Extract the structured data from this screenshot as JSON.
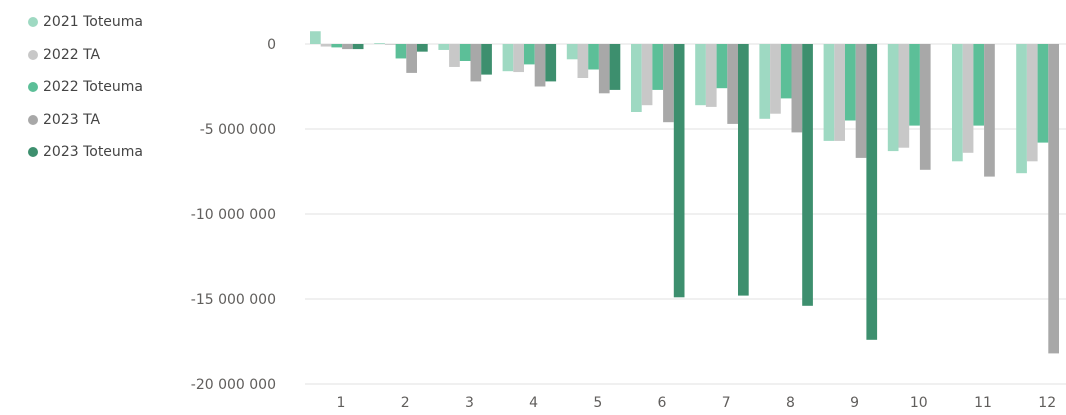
{
  "chart_data": {
    "type": "bar",
    "categories": [
      "1",
      "2",
      "3",
      "4",
      "5",
      "6",
      "7",
      "8",
      "9",
      "10",
      "11",
      "12"
    ],
    "series": [
      {
        "name": "2021 Toteuma",
        "color": "#9ed9c2",
        "values": [
          750000,
          50000,
          -350000,
          -1600000,
          -900000,
          -4000000,
          -3600000,
          -4400000,
          -5700000,
          -6300000,
          -6900000,
          -7600000
        ]
      },
      {
        "name": "2022 TA",
        "color": "#c8c8c8",
        "values": [
          -150000,
          -50000,
          -1350000,
          -1650000,
          -2000000,
          -3600000,
          -3700000,
          -4100000,
          -5700000,
          -6100000,
          -6400000,
          -6900000
        ]
      },
      {
        "name": "2022 Toteuma",
        "color": "#5cbf98",
        "values": [
          -200000,
          -850000,
          -1000000,
          -1200000,
          -1500000,
          -2700000,
          -2600000,
          -3200000,
          -4500000,
          -4800000,
          -4800000,
          -5800000
        ]
      },
      {
        "name": "2023 TA",
        "color": "#a8a8a8",
        "values": [
          -300000,
          -1700000,
          -2200000,
          -2500000,
          -2900000,
          -4600000,
          -4700000,
          -5200000,
          -6700000,
          -7400000,
          -7800000,
          -18200000
        ]
      },
      {
        "name": "2023 Toteuma",
        "color": "#3d8f6e",
        "values": [
          -300000,
          -450000,
          -1800000,
          -2200000,
          -2700000,
          -14900000,
          -14800000,
          -15400000,
          -17400000,
          null,
          null,
          null
        ]
      }
    ],
    "yticks": [
      0,
      -5000000,
      -10000000,
      -15000000,
      -20000000
    ],
    "ytick_labels": [
      "0",
      "-5 000 000",
      "-10 000 000",
      "-15 000 000",
      "-20 000 000"
    ],
    "ylim": [
      -20000000,
      0
    ],
    "grid": true,
    "legend_position": "left",
    "axis_color": "#e1e1e1"
  }
}
